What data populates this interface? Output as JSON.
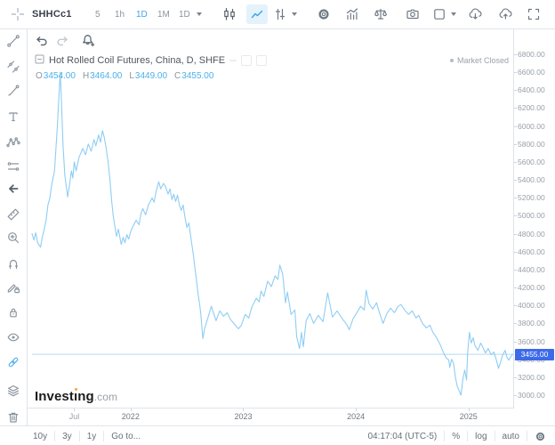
{
  "topbar": {
    "symbol": "SHHCc1",
    "timeframes": [
      "5",
      "1h",
      "1D",
      "1M",
      "1D"
    ],
    "active_timeframe": "1D",
    "icons": [
      "crosshair-icon",
      "candles-icon",
      "line-chart-icon",
      "sliders-icon",
      "gear-icon",
      "indicators-icon",
      "balance-icon",
      "camera-icon",
      "layout-template-icon",
      "cloud-download-icon",
      "cloud-upload-icon",
      "fullscreen-icon"
    ]
  },
  "undo_row": {
    "icons": [
      "undo-icon",
      "redo-icon",
      "alert-bell-plus-icon"
    ]
  },
  "sidebar_tools": [
    "trend-line-icon",
    "channel-icon",
    "brush-icon",
    "text-tool-icon",
    "pattern-icon",
    "prediction-tool-icon",
    "collapse-arrow-icon",
    "measure-icon",
    "zoom-in-icon",
    "magnet-icon",
    "drawing-lock-icon",
    "lock-all-icon",
    "hide-all-icon",
    "sync-link-icon",
    "object-tree-icon",
    "remove-drawings-icon"
  ],
  "chart": {
    "title": "Hot Rolled Coil Futures, China, D, SHFE",
    "ohlc": {
      "o": "O",
      "o_val": "3454.00",
      "h": "H",
      "h_val": "3464.00",
      "l": "L",
      "l_val": "3449.00",
      "c": "C",
      "c_val": "3455.00"
    },
    "market_status": "Market Closed",
    "last_price_label": "3455.00"
  },
  "price_axis": {
    "ticks": [
      "6800.00",
      "6600.00",
      "6400.00",
      "6200.00",
      "6000.00",
      "5800.00",
      "5600.00",
      "5400.00",
      "5200.00",
      "5000.00",
      "4800.00",
      "4600.00",
      "4400.00",
      "4200.00",
      "4000.00",
      "3800.00",
      "3600.00",
      "3400.00",
      "3200.00",
      "3000.00"
    ]
  },
  "time_axis": {
    "ticks": [
      {
        "label": "Jul",
        "month": 6,
        "minor": true
      },
      {
        "label": "2022",
        "month": 12,
        "minor": false
      },
      {
        "label": "2023",
        "month": 24,
        "minor": false
      },
      {
        "label": "2024",
        "month": 36,
        "minor": false
      },
      {
        "label": "2025",
        "month": 48,
        "minor": false
      }
    ]
  },
  "bottombar": {
    "ranges": [
      "10y",
      "3y",
      "1y"
    ],
    "goto_label": "Go to...",
    "time": "04:17:04 (UTC-5)",
    "percent": "%",
    "log": "log",
    "auto": "auto"
  },
  "logo": {
    "text": "Investing.com",
    "pre": "Invest",
    "post": "ıng",
    "tld": ".com"
  },
  "chart_data": {
    "type": "line",
    "title": "Hot Rolled Coil Futures, China, D, SHFE",
    "symbol": "SHHCc1",
    "timeframe": "D",
    "line_color": "#8fcdf4",
    "last_price": 3455.0,
    "last_price_line_color": "#b3d9f5",
    "badge_color": "#3d6ae8",
    "grid": false,
    "x_unit": "months since 2021-01-01",
    "xlim": [
      1.5,
      52.95
    ],
    "ylim": [
      3000,
      6800
    ],
    "y_tick_step": 200,
    "series": [
      {
        "name": "SHHCc1",
        "points": [
          [
            1.5,
            4800
          ],
          [
            1.7,
            4730
          ],
          [
            1.9,
            4810
          ],
          [
            2.1,
            4700
          ],
          [
            2.4,
            4650
          ],
          [
            2.6,
            4760
          ],
          [
            2.8,
            4850
          ],
          [
            3.0,
            4950
          ],
          [
            3.2,
            5120
          ],
          [
            3.4,
            5200
          ],
          [
            3.6,
            5350
          ],
          [
            3.9,
            5500
          ],
          [
            4.2,
            6000
          ],
          [
            4.35,
            6300
          ],
          [
            4.5,
            6600
          ],
          [
            4.65,
            6250
          ],
          [
            4.8,
            5800
          ],
          [
            5.0,
            5450
          ],
          [
            5.3,
            5210
          ],
          [
            5.5,
            5350
          ],
          [
            5.7,
            5500
          ],
          [
            5.85,
            5420
          ],
          [
            6.0,
            5600
          ],
          [
            6.2,
            5500
          ],
          [
            6.5,
            5650
          ],
          [
            6.9,
            5750
          ],
          [
            7.2,
            5680
          ],
          [
            7.5,
            5800
          ],
          [
            7.8,
            5720
          ],
          [
            8.1,
            5850
          ],
          [
            8.3,
            5780
          ],
          [
            8.6,
            5900
          ],
          [
            8.8,
            5820
          ],
          [
            9.0,
            5950
          ],
          [
            9.2,
            5870
          ],
          [
            9.4,
            5750
          ],
          [
            9.6,
            5600
          ],
          [
            9.8,
            5400
          ],
          [
            10.0,
            5150
          ],
          [
            10.15,
            5000
          ],
          [
            10.3,
            4900
          ],
          [
            10.5,
            4770
          ],
          [
            10.7,
            4850
          ],
          [
            11.0,
            4680
          ],
          [
            11.2,
            4760
          ],
          [
            11.4,
            4700
          ],
          [
            11.6,
            4790
          ],
          [
            11.8,
            4740
          ],
          [
            12.0,
            4820
          ],
          [
            12.2,
            4870
          ],
          [
            12.6,
            4950
          ],
          [
            12.9,
            4900
          ],
          [
            13.1,
            5020
          ],
          [
            13.3,
            5080
          ],
          [
            13.6,
            5010
          ],
          [
            13.9,
            5120
          ],
          [
            14.3,
            5200
          ],
          [
            14.5,
            5150
          ],
          [
            14.7,
            5260
          ],
          [
            14.85,
            5320
          ],
          [
            15.0,
            5380
          ],
          [
            15.2,
            5300
          ],
          [
            15.5,
            5360
          ],
          [
            15.7,
            5330
          ],
          [
            16.0,
            5240
          ],
          [
            16.2,
            5300
          ],
          [
            16.4,
            5180
          ],
          [
            16.6,
            5240
          ],
          [
            16.8,
            5160
          ],
          [
            17.0,
            5230
          ],
          [
            17.2,
            5120
          ],
          [
            17.4,
            5060
          ],
          [
            17.6,
            5120
          ],
          [
            17.8,
            4980
          ],
          [
            18.0,
            4870
          ],
          [
            18.2,
            4920
          ],
          [
            18.5,
            4700
          ],
          [
            18.7,
            4560
          ],
          [
            18.9,
            4380
          ],
          [
            19.0,
            4300
          ],
          [
            19.2,
            4120
          ],
          [
            19.4,
            3980
          ],
          [
            19.5,
            3880
          ],
          [
            19.6,
            3760
          ],
          [
            19.7,
            3630
          ],
          [
            19.9,
            3750
          ],
          [
            20.2,
            3850
          ],
          [
            20.6,
            3990
          ],
          [
            21.1,
            3830
          ],
          [
            21.5,
            3940
          ],
          [
            21.9,
            3880
          ],
          [
            22.3,
            3920
          ],
          [
            22.6,
            3850
          ],
          [
            23.0,
            3800
          ],
          [
            23.3,
            3760
          ],
          [
            23.5,
            3740
          ],
          [
            23.8,
            3780
          ],
          [
            24.2,
            3900
          ],
          [
            24.6,
            3860
          ],
          [
            24.9,
            3980
          ],
          [
            25.4,
            4080
          ],
          [
            25.7,
            4040
          ],
          [
            25.9,
            4160
          ],
          [
            26.2,
            4100
          ],
          [
            26.6,
            4270
          ],
          [
            27.0,
            4210
          ],
          [
            27.4,
            4330
          ],
          [
            27.7,
            4290
          ],
          [
            27.9,
            4450
          ],
          [
            28.2,
            4350
          ],
          [
            28.5,
            4030
          ],
          [
            28.7,
            4150
          ],
          [
            29.1,
            3900
          ],
          [
            29.5,
            3950
          ],
          [
            29.7,
            3650
          ],
          [
            30.0,
            3520
          ],
          [
            30.2,
            3700
          ],
          [
            30.4,
            3540
          ],
          [
            30.7,
            3830
          ],
          [
            31.1,
            3910
          ],
          [
            31.5,
            3800
          ],
          [
            32.0,
            3890
          ],
          [
            32.5,
            3820
          ],
          [
            33.0,
            4140
          ],
          [
            33.3,
            3980
          ],
          [
            33.5,
            3870
          ],
          [
            34.0,
            3940
          ],
          [
            34.5,
            3860
          ],
          [
            35.0,
            3790
          ],
          [
            35.3,
            3730
          ],
          [
            35.7,
            3850
          ],
          [
            36.1,
            3920
          ],
          [
            36.5,
            3990
          ],
          [
            36.9,
            3950
          ],
          [
            37.1,
            4170
          ],
          [
            37.4,
            4020
          ],
          [
            37.8,
            3960
          ],
          [
            38.2,
            4030
          ],
          [
            38.6,
            3890
          ],
          [
            38.9,
            3800
          ],
          [
            39.3,
            3910
          ],
          [
            39.7,
            3970
          ],
          [
            40.1,
            3920
          ],
          [
            40.5,
            3990
          ],
          [
            40.8,
            4010
          ],
          [
            41.2,
            3950
          ],
          [
            41.6,
            3900
          ],
          [
            42.0,
            3940
          ],
          [
            42.4,
            3860
          ],
          [
            42.7,
            3890
          ],
          [
            43.1,
            3800
          ],
          [
            43.5,
            3750
          ],
          [
            43.9,
            3780
          ],
          [
            44.2,
            3700
          ],
          [
            44.6,
            3640
          ],
          [
            45.0,
            3560
          ],
          [
            45.3,
            3480
          ],
          [
            45.6,
            3420
          ],
          [
            45.9,
            3390
          ],
          [
            46.0,
            3310
          ],
          [
            46.2,
            3400
          ],
          [
            46.4,
            3360
          ],
          [
            46.6,
            3200
          ],
          [
            46.8,
            3100
          ],
          [
            47.0,
            3050
          ],
          [
            47.2,
            3000
          ],
          [
            47.4,
            3180
          ],
          [
            47.6,
            3280
          ],
          [
            47.8,
            3170
          ],
          [
            47.9,
            3460
          ],
          [
            48.1,
            3700
          ],
          [
            48.3,
            3580
          ],
          [
            48.5,
            3640
          ],
          [
            48.7,
            3550
          ],
          [
            49.0,
            3500
          ],
          [
            49.3,
            3580
          ],
          [
            49.6,
            3520
          ],
          [
            49.8,
            3470
          ],
          [
            50.1,
            3520
          ],
          [
            50.4,
            3450
          ],
          [
            50.7,
            3480
          ],
          [
            51.0,
            3380
          ],
          [
            51.2,
            3300
          ],
          [
            51.4,
            3360
          ],
          [
            51.6,
            3440
          ],
          [
            51.9,
            3500
          ],
          [
            52.1,
            3420
          ],
          [
            52.3,
            3390
          ],
          [
            52.5,
            3430
          ],
          [
            52.7,
            3455
          ]
        ]
      }
    ]
  }
}
